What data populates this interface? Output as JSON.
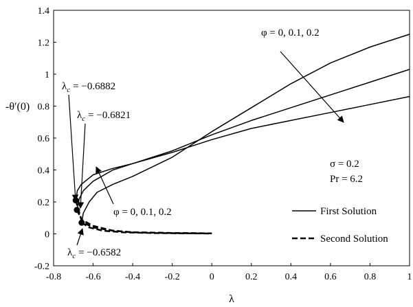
{
  "chart_data": {
    "type": "line",
    "xlabel": "λ",
    "ylabel": "-θ′(0)",
    "xlim": [
      -0.8,
      1.0
    ],
    "ylim": [
      -0.2,
      1.4
    ],
    "x_ticks": [
      "-0.8",
      "-0.6",
      "-0.4",
      "-0.2",
      "0",
      "0.2",
      "0.4",
      "0.6",
      "0.8",
      "1"
    ],
    "y_ticks": [
      "-0.2",
      "0",
      "0.2",
      "0.4",
      "0.6",
      "0.8",
      "1",
      "1.2",
      "1.4"
    ],
    "grid": false,
    "legend": {
      "placement": "bottom-right",
      "entries": [
        {
          "label": "First Solution",
          "style": "solid"
        },
        {
          "label": "Second Solution",
          "style": "dashed"
        }
      ]
    },
    "series": [
      {
        "style": "solid",
        "x": [
          -0.6882,
          -0.68,
          -0.66,
          -0.6,
          -0.5,
          -0.4,
          -0.2,
          0,
          0.2,
          0.4,
          0.6,
          0.8,
          1.0
        ],
        "y": [
          0.21,
          0.27,
          0.31,
          0.37,
          0.41,
          0.44,
          0.51,
          0.59,
          0.66,
          0.71,
          0.76,
          0.81,
          0.86
        ]
      },
      {
        "style": "solid",
        "x": [
          -0.6821,
          -0.67,
          -0.65,
          -0.6,
          -0.5,
          -0.4,
          -0.2,
          0,
          0.2,
          0.4,
          0.6,
          0.8,
          1.0
        ],
        "y": [
          0.15,
          0.22,
          0.27,
          0.33,
          0.4,
          0.44,
          0.52,
          0.62,
          0.71,
          0.79,
          0.87,
          0.95,
          1.03
        ]
      },
      {
        "style": "solid",
        "x": [
          -0.6582,
          -0.65,
          -0.62,
          -0.58,
          -0.5,
          -0.4,
          -0.2,
          0,
          0.2,
          0.4,
          0.6,
          0.8,
          1.0
        ],
        "y": [
          0.07,
          0.13,
          0.2,
          0.26,
          0.31,
          0.36,
          0.48,
          0.64,
          0.79,
          0.94,
          1.07,
          1.17,
          1.25
        ]
      },
      {
        "style": "dashed",
        "x": [
          -0.6882,
          -0.66,
          -0.6,
          -0.5,
          -0.4,
          -0.2,
          0.0
        ],
        "y": [
          0.21,
          0.09,
          0.05,
          0.02,
          0.01,
          0.005,
          0.003
        ]
      },
      {
        "style": "dashed",
        "x": [
          -0.6821,
          -0.65,
          -0.6,
          -0.5,
          -0.4,
          -0.2,
          0.0
        ],
        "y": [
          0.15,
          0.07,
          0.04,
          0.02,
          0.01,
          0.005,
          0.003
        ]
      },
      {
        "style": "dashed",
        "x": [
          -0.6582,
          -0.62,
          -0.55,
          -0.45,
          -0.3,
          -0.1,
          0.0
        ],
        "y": [
          0.07,
          0.04,
          0.02,
          0.01,
          0.005,
          0.003,
          0.002
        ]
      }
    ],
    "critical_points": [
      {
        "label": "λc = −0.6882",
        "x": -0.6882,
        "y": 0.21
      },
      {
        "label": "λc = −0.6821",
        "x": -0.6821,
        "y": 0.15
      },
      {
        "label": "λc = −0.6582",
        "x": -0.6582,
        "y": 0.07
      }
    ],
    "annotations": {
      "phi_top": "φ = 0, 0.1, 0.2",
      "phi_bottom": "φ = 0, 0.1, 0.2",
      "sigma": "σ = 0.2",
      "pr": "Pr = 6.2",
      "lc1_val": "= −0.6882",
      "lc2_val": "= −0.6821",
      "lc3_val": "= −0.6582",
      "lambda_sym": "λ",
      "c_sub": "c"
    }
  }
}
